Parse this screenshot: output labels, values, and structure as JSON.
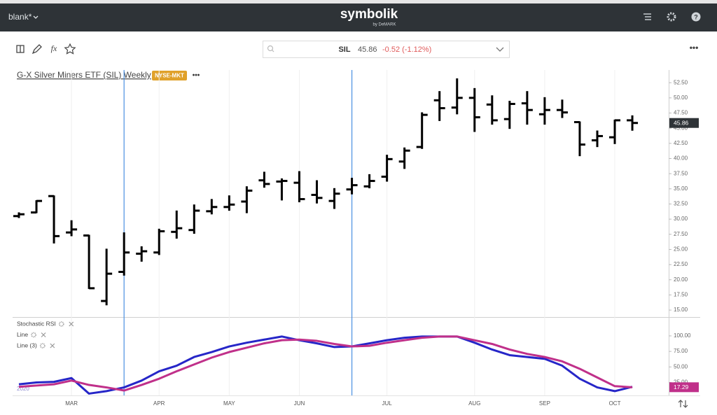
{
  "app": {
    "workspace": "blank*",
    "logo": "symbolik",
    "logo_sub": "by DeMARK",
    "symbol": "SIL",
    "price": "45.86",
    "change": "-0.52 (-1.12%)",
    "formula_icon": "fx",
    "menu": "•••"
  },
  "chart_header": {
    "title": "G-X Silver Miners ETF (SIL) Weekly",
    "exchange": "NYSE-MKT",
    "more": "•••"
  },
  "chart_data": [
    {
      "type": "ohlc",
      "color": "#000000",
      "open": [
        30.5,
        31.1,
        33.8,
        27.8,
        27.3,
        16.5,
        21.3,
        24.3,
        24.5,
        27.9,
        28.2,
        31.3,
        32.0,
        32.9,
        36.4,
        36.2,
        36.0,
        34.0,
        33.0,
        34.9,
        35.4,
        37.0,
        39.5,
        41.9,
        49.6,
        48.4,
        50.0,
        48.9,
        46.5,
        49.1,
        47.3,
        48.0,
        46.0,
        43.0,
        43.5,
        46.3
      ],
      "high": [
        31.0,
        33.0,
        33.8,
        29.7,
        27.3,
        25.0,
        27.7,
        25.4,
        28.3,
        31.3,
        32.3,
        33.2,
        33.8,
        35.3,
        37.7,
        36.6,
        37.8,
        36.3,
        35.0,
        36.7,
        37.3,
        40.5,
        41.7,
        47.5,
        51.0,
        53.1,
        51.5,
        50.3,
        49.4,
        51.0,
        50.0,
        49.6,
        46.0,
        44.5,
        46.3,
        47.0
      ],
      "low": [
        30.3,
        31.1,
        26.1,
        27.3,
        18.6,
        15.9,
        20.8,
        23.1,
        24.2,
        26.9,
        27.7,
        30.9,
        31.5,
        31.1,
        35.3,
        33.2,
        32.9,
        32.7,
        31.8,
        34.2,
        35.2,
        36.3,
        38.4,
        41.7,
        46.3,
        47.4,
        44.5,
        45.7,
        45.0,
        45.7,
        45.7,
        46.8,
        40.5,
        42.0,
        42.5,
        44.7
      ],
      "close": [
        30.8,
        33.0,
        27.2,
        28.3,
        18.6,
        21.0,
        24.5,
        24.7,
        28.0,
        28.5,
        31.4,
        32.0,
        32.4,
        34.7,
        35.8,
        36.3,
        33.3,
        33.5,
        34.2,
        35.6,
        36.3,
        39.9,
        41.3,
        47.2,
        48.3,
        50.0,
        46.8,
        46.3,
        49.0,
        48.0,
        48.0,
        47.6,
        42.3,
        43.7,
        46.3,
        45.86
      ],
      "ylim": [
        14.2,
        54.6
      ],
      "yticks": [
        {
          "value": 15,
          "label": "15.00"
        },
        {
          "value": 17.5,
          "label": "17.50"
        },
        {
          "value": 20,
          "label": "20.00"
        },
        {
          "value": 22.5,
          "label": "22.50"
        },
        {
          "value": 25,
          "label": "25.00"
        },
        {
          "value": 27.5,
          "label": "27.50"
        },
        {
          "value": 30,
          "label": "30.00"
        },
        {
          "value": 32.5,
          "label": "32.50"
        },
        {
          "value": 35,
          "label": "35.00"
        },
        {
          "value": 37.5,
          "label": "37.50"
        },
        {
          "value": 40,
          "label": "40.00"
        },
        {
          "value": 42.5,
          "label": "42.50"
        },
        {
          "value": 45,
          "label": "45.00"
        },
        {
          "value": 47.5,
          "label": "47.50"
        },
        {
          "value": 50,
          "label": "50.00"
        },
        {
          "value": 52.5,
          "label": "52.50"
        }
      ],
      "vlines": [
        6,
        19
      ],
      "vline_color": "#4a90e2"
    },
    {
      "type": "line",
      "title": "Stochastic RSI",
      "year_label": "2020",
      "categories": [
        null,
        null,
        null,
        "MAR",
        null,
        null,
        null,
        null,
        "APR",
        null,
        null,
        null,
        "MAY",
        null,
        null,
        null,
        "JUN",
        null,
        null,
        null,
        null,
        "JUL",
        null,
        null,
        null,
        null,
        "AUG",
        null,
        null,
        null,
        "SEP",
        null,
        null,
        null,
        "OCT",
        null
      ],
      "series": [
        {
          "name": "Line",
          "color": "#2626c8",
          "values": [
            22,
            25,
            26,
            32,
            7,
            11,
            17,
            28,
            43,
            52,
            66,
            74,
            83,
            89,
            94,
            99,
            93,
            88,
            82,
            83,
            88,
            93,
            97,
            99,
            99,
            99,
            89,
            78,
            69,
            66,
            63,
            52,
            31,
            17,
            11,
            18
          ]
        },
        {
          "name": "Line (3)",
          "color": "#c0308a",
          "values": [
            18,
            20,
            22,
            28,
            21,
            17,
            12,
            21,
            31,
            43,
            54,
            65,
            74,
            81,
            88,
            93,
            94,
            92,
            87,
            83,
            84,
            89,
            93,
            97,
            99,
            99,
            93,
            87,
            78,
            71,
            66,
            59,
            47,
            33,
            19,
            17.29
          ]
        }
      ],
      "ylim": [
        3,
        127
      ],
      "yticks": [
        {
          "value": 25,
          "label": "25.00"
        },
        {
          "value": 50,
          "label": "50.00"
        },
        {
          "value": 75,
          "label": "75.00"
        },
        {
          "value": 100,
          "label": "100.00"
        }
      ]
    }
  ]
}
